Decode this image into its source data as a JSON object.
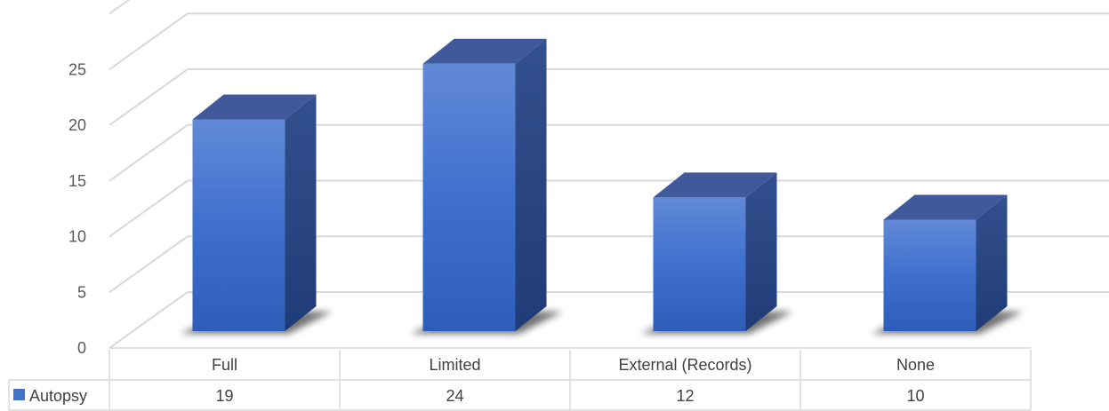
{
  "chart_data": {
    "type": "bar",
    "style": "3d-column-with-data-table",
    "categories": [
      "Full",
      "Limited",
      "External (Records)",
      "None"
    ],
    "series": [
      {
        "name": "Autopsy",
        "values": [
          19,
          24,
          12,
          10
        ],
        "color": "#4472C4"
      }
    ],
    "yticks": [
      "0",
      "5",
      "10",
      "15",
      "20",
      "25"
    ],
    "ylim": [
      0,
      30
    ],
    "grid": true,
    "legend": "data-table"
  }
}
